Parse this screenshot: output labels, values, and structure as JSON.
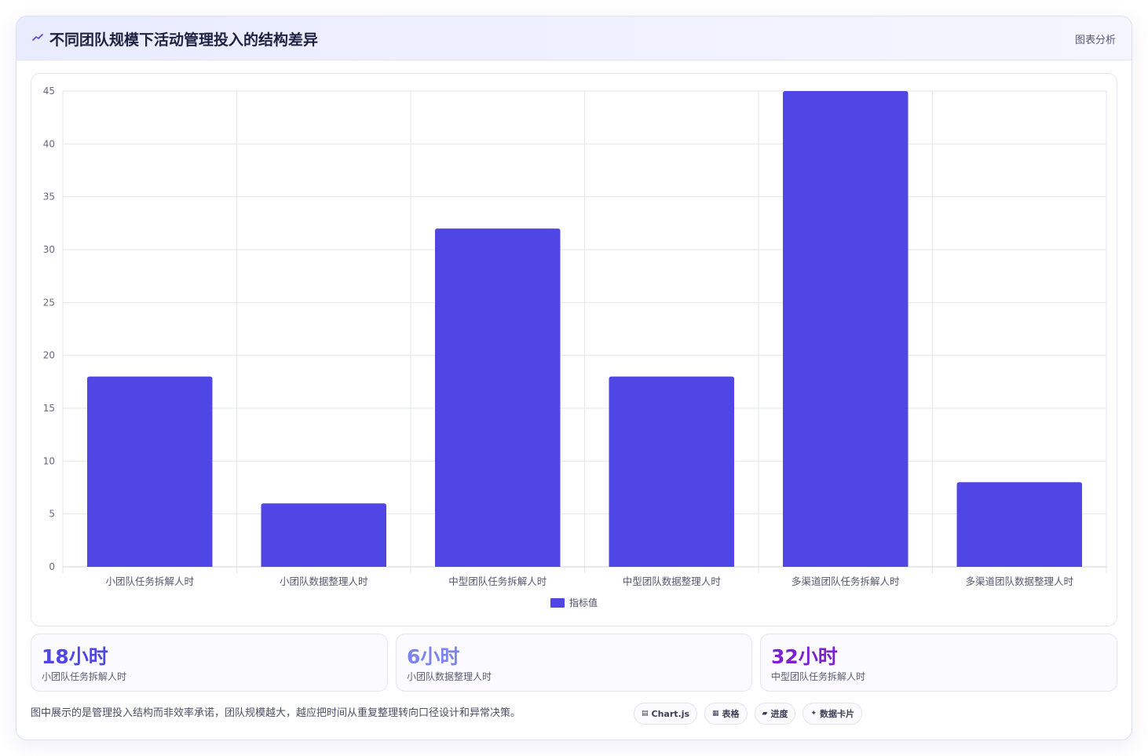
{
  "header": {
    "icon": "trend-line-icon",
    "title": "不同团队规模下活动管理投入的结构差异",
    "tag": "图表分析"
  },
  "chart_data": {
    "type": "bar",
    "categories": [
      "小团队任务拆解人时",
      "小团队数据整理人时",
      "中型团队任务拆解人时",
      "中型团队数据整理人时",
      "多渠道团队任务拆解人时",
      "多渠道团队数据整理人时"
    ],
    "series": [
      {
        "name": "指标值",
        "values": [
          18,
          6,
          32,
          18,
          45,
          8
        ],
        "color": "#4f46e5"
      }
    ],
    "ylim": [
      0,
      45
    ],
    "yticks": [
      0,
      5,
      10,
      15,
      20,
      25,
      30,
      35,
      40,
      45
    ],
    "grid": true,
    "legend": "bottom"
  },
  "stats": [
    {
      "value": "18小时",
      "label": "小团队任务拆解人时",
      "color": "#4f46e5"
    },
    {
      "value": "6小时",
      "label": "小团队数据整理人时",
      "color": "#7c83ef"
    },
    {
      "value": "32小时",
      "label": "中型团队任务拆解人时",
      "color": "#7e22ce"
    }
  ],
  "note": "图中展示的是管理投入结构而非效率承诺，团队规模越大，越应把时间从重复整理转向口径设计和异常决策。",
  "chips": [
    {
      "glyph": "▤",
      "label": "Chart.js",
      "icon": "chart-icon"
    },
    {
      "glyph": "▦",
      "label": "表格",
      "icon": "table-icon"
    },
    {
      "glyph": "▰",
      "label": "进度",
      "icon": "progress-icon"
    },
    {
      "glyph": "✦",
      "label": "数据卡片",
      "icon": "sparkle-icon"
    }
  ]
}
